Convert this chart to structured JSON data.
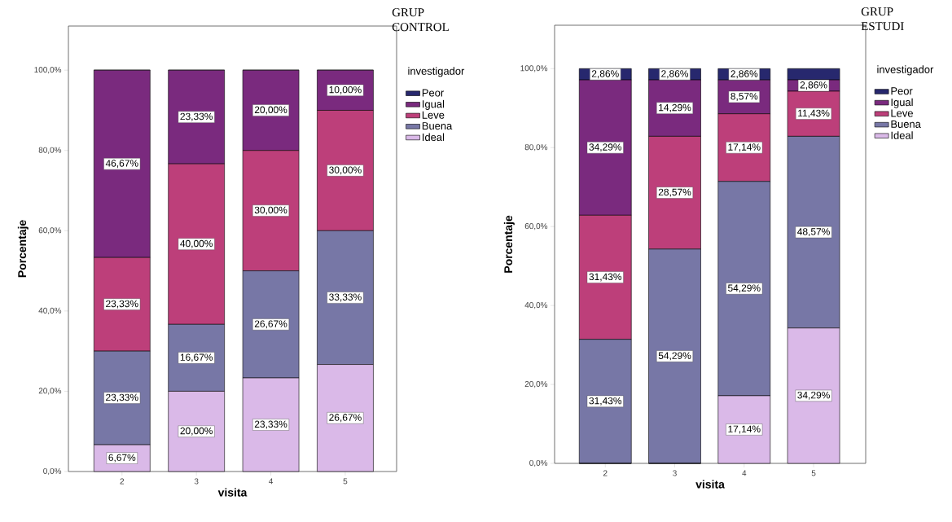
{
  "chart_data": [
    {
      "type": "bar",
      "stacked": true,
      "title": "GRUP CONTROL",
      "xlabel": "visita",
      "ylabel": "Porcentaje",
      "legend_title": "investigador",
      "legend": "right",
      "categories": [
        "2",
        "3",
        "4",
        "5"
      ],
      "ylim": [
        0,
        111
      ],
      "yticks": [
        {
          "value": 0,
          "label": "0,0%"
        },
        {
          "value": 20,
          "label": "20,0%"
        },
        {
          "value": 40,
          "label": "40,0%"
        },
        {
          "value": 60,
          "label": "60,0%"
        },
        {
          "value": 80,
          "label": "80,0%"
        },
        {
          "value": 100,
          "label": "100,0%"
        }
      ],
      "series": [
        {
          "name": "Ideal",
          "color": "#dab9e8",
          "values": [
            6.67,
            20,
            23.33,
            26.67
          ],
          "value_labels": [
            "6,67%",
            "20,00%",
            "23,33%",
            "26,67%"
          ]
        },
        {
          "name": "Buena",
          "color": "#7777a6",
          "values": [
            23.33,
            16.67,
            26.67,
            33.33
          ],
          "value_labels": [
            "23,33%",
            "16,67%",
            "26,67%",
            "33,33%"
          ]
        },
        {
          "name": "Leve",
          "color": "#bd3f7a",
          "values": [
            23.33,
            40,
            30,
            30
          ],
          "value_labels": [
            "23,33%",
            "40,00%",
            "30,00%",
            "30,00%"
          ]
        },
        {
          "name": "Igual",
          "color": "#7a2a7e",
          "values": [
            46.67,
            23.33,
            20,
            10
          ],
          "value_labels": [
            "46,67%",
            "23,33%",
            "20,00%",
            "10,00%"
          ]
        },
        {
          "name": "Peor",
          "color": "#27286e",
          "values": [
            0,
            0,
            0,
            0
          ],
          "value_labels": [
            null,
            null,
            null,
            null
          ]
        }
      ]
    },
    {
      "type": "bar",
      "stacked": true,
      "title": "GRUP ESTUDI",
      "xlabel": "visita",
      "ylabel": "Porcentaje",
      "legend_title": "investigador",
      "legend": "right",
      "categories": [
        "2",
        "3",
        "4",
        "5"
      ],
      "ylim": [
        0,
        111
      ],
      "yticks": [
        {
          "value": 0,
          "label": "0,0%"
        },
        {
          "value": 20,
          "label": "20,0%"
        },
        {
          "value": 40,
          "label": "40,0%"
        },
        {
          "value": 60,
          "label": "60,0%"
        },
        {
          "value": 80,
          "label": "80,0%"
        },
        {
          "value": 100,
          "label": "100,0%"
        }
      ],
      "series": [
        {
          "name": "Ideal",
          "color": "#dab9e8",
          "values": [
            0,
            0,
            17.14,
            34.29
          ],
          "value_labels": [
            null,
            null,
            "17,14%",
            "34,29%"
          ]
        },
        {
          "name": "Buena",
          "color": "#7777a6",
          "values": [
            31.43,
            54.29,
            54.29,
            48.57
          ],
          "value_labels": [
            "31,43%",
            "54,29%",
            "54,29%",
            "48,57%"
          ]
        },
        {
          "name": "Leve",
          "color": "#bd3f7a",
          "values": [
            31.43,
            28.57,
            17.14,
            11.43
          ],
          "value_labels": [
            "31,43%",
            "28,57%",
            "17,14%",
            "11,43%"
          ]
        },
        {
          "name": "Igual",
          "color": "#7a2a7e",
          "values": [
            34.29,
            14.29,
            8.57,
            2.86
          ],
          "value_labels": [
            "34,29%",
            "14,29%",
            "8,57%",
            "2,86%"
          ]
        },
        {
          "name": "Peor",
          "color": "#27286e",
          "values": [
            2.86,
            2.86,
            2.86,
            2.86
          ],
          "value_labels": [
            "2,86%",
            "2,86%",
            "2,86%",
            null
          ]
        }
      ]
    }
  ]
}
